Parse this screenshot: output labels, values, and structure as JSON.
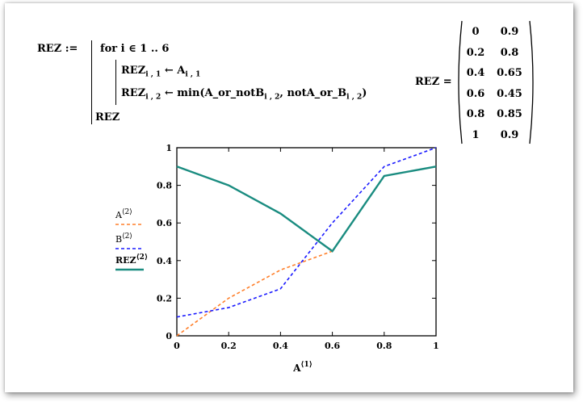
{
  "program": {
    "lhs": "REZ :=",
    "line1": "for  i ∈ 1 .. 6",
    "line2_lhs": "REZ",
    "line2_sub": "i , 1",
    "line2_arrow": "←",
    "line2_rhs": "A",
    "line2_rhs_sub": "i , 1",
    "line3_lhs": "REZ",
    "line3_sub": "i , 2",
    "line3_arrow": "←",
    "line3_fn": "min(A_or_notB",
    "line3_sub_a": "i , 2",
    "line3_mid": ", notA_or_B",
    "line3_sub_b": "i , 2",
    "line3_close": ")",
    "line4": "REZ"
  },
  "result": {
    "label": "REZ =",
    "rows": [
      [
        "0",
        "0.9"
      ],
      [
        "0.2",
        "0.8"
      ],
      [
        "0.4",
        "0.65"
      ],
      [
        "0.6",
        "0.45"
      ],
      [
        "0.8",
        "0.85"
      ],
      [
        "1",
        "0.9"
      ]
    ]
  },
  "chart_data": {
    "type": "line",
    "x": [
      0,
      0.2,
      0.4,
      0.6,
      0.8,
      1
    ],
    "xlim": [
      0,
      1
    ],
    "ylim": [
      0,
      1
    ],
    "xticks": [
      "0",
      "0.2",
      "0.4",
      "0.6",
      "0.8",
      "1"
    ],
    "yticks": [
      "0",
      "0.2",
      "0.4",
      "0.6",
      "0.8",
      "1"
    ],
    "xlabel": "A",
    "xlabel_sup": "⟨1⟩",
    "grid": false,
    "legend_position": "left-outside",
    "series": [
      {
        "name": "A",
        "sup": "⟨2⟩",
        "values": [
          0,
          0.2,
          0.35,
          0.45,
          null,
          null
        ],
        "color": "#ff7f2a",
        "dash": "4,3"
      },
      {
        "name": "B",
        "sup": "⟨2⟩",
        "values": [
          0.1,
          0.15,
          0.25,
          0.6,
          0.9,
          1.0
        ],
        "color": "#1a1aff",
        "dash": "4,3"
      },
      {
        "name": "REZ",
        "sup": "⟨2⟩",
        "values": [
          0.9,
          0.8,
          0.65,
          0.45,
          0.85,
          0.9
        ],
        "color": "#1a8c80",
        "dash": ""
      }
    ]
  }
}
